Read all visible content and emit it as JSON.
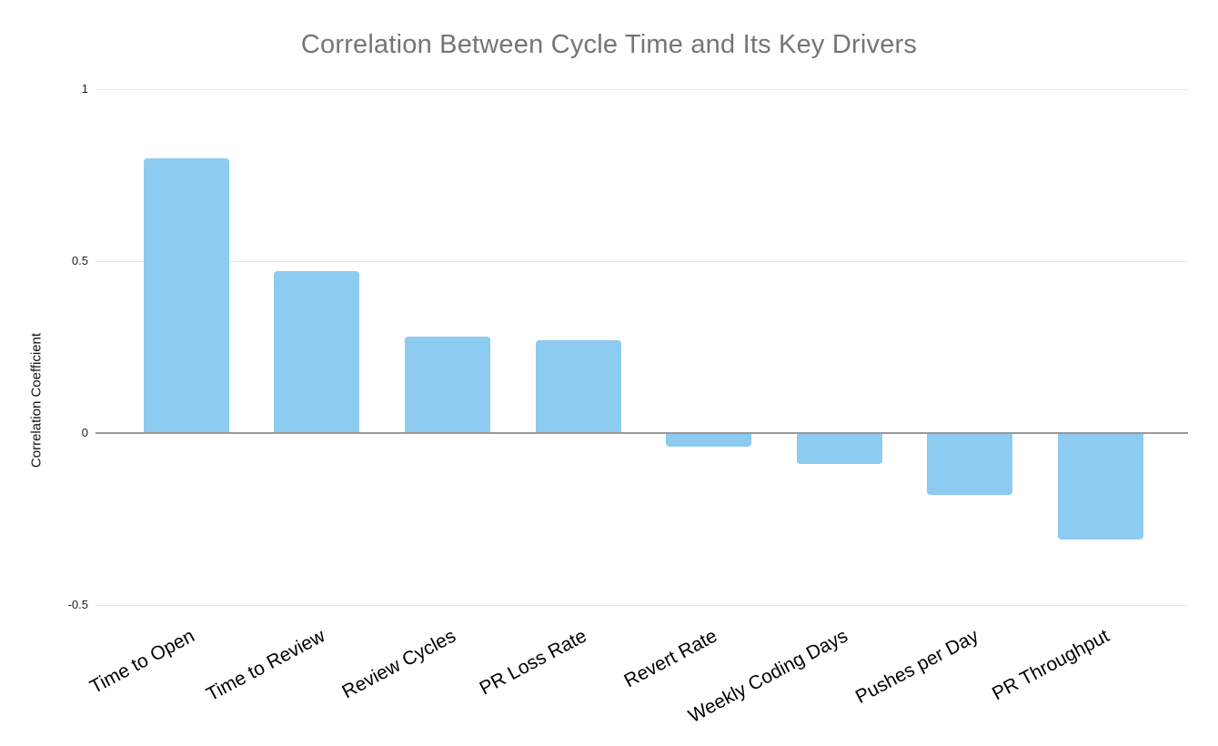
{
  "chart_data": {
    "type": "bar",
    "title": "Correlation Between Cycle Time and Its Key Drivers",
    "xlabel": "",
    "ylabel": "Correlation Coefficient",
    "categories": [
      "Time to Open",
      "Time to Review",
      "Review Cycles",
      "PR Loss Rate",
      "Revert Rate",
      "Weekly Coding Days",
      "Pushes per Day",
      "PR Throughput"
    ],
    "values": [
      0.8,
      0.47,
      0.28,
      0.27,
      -0.04,
      -0.09,
      -0.18,
      -0.31
    ],
    "ylim": [
      -0.5,
      1
    ],
    "yticks": [
      1,
      0.5,
      0,
      -0.5
    ],
    "ytick_labels": [
      "1",
      "0.5",
      "0",
      "-0.5"
    ],
    "grid": true,
    "legend": false,
    "colors": {
      "bar": "#8dcbf0",
      "title": "#757575",
      "gridline": "#e6e6e6",
      "zero_line": "#999999",
      "tick_text": "#222222",
      "label_text": "#000000",
      "background": "#ffffff"
    }
  }
}
